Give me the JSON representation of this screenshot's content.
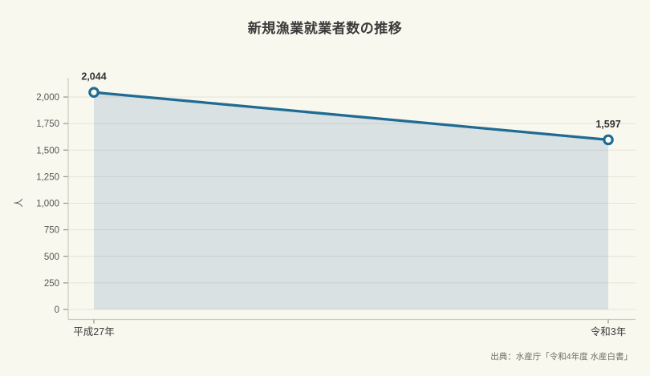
{
  "title": "新規漁業就業者数の推移",
  "source": "出典：水産庁「令和4年度 水産白書」",
  "chart_data": {
    "type": "area",
    "title": "新規漁業就業者数の推移",
    "categories": [
      "平成27年",
      "令和3年"
    ],
    "values": [
      2044,
      1597
    ],
    "point_labels": [
      "2,044",
      "1,597"
    ],
    "xlabel": "",
    "ylabel": "人",
    "yticks": [
      0,
      250,
      500,
      750,
      1000,
      1250,
      1500,
      1750,
      2000
    ],
    "ytick_labels": [
      "0",
      "250",
      "500",
      "750",
      "1,000",
      "1,250",
      "1,500",
      "1,750",
      "2,000"
    ],
    "ylim": [
      -90,
      2180
    ],
    "grid": "horizontal",
    "legend": "none",
    "marker": "circle-open",
    "source_note": "出典：水産庁「令和4年度 水産白書」"
  },
  "colors": {
    "background": "#f9f8ef",
    "line": "#1f6b93",
    "area_fill": "rgba(70,120,165,0.18)",
    "marker_fill": "#fbfaf3",
    "grid": "#e5e3d8",
    "axis": "#cccbc2",
    "tick": "#919191",
    "title_text": "#3b3b3b",
    "point_label_text": "#333333",
    "xtick_text": "#3a3a3a",
    "ytick_text": "#555555",
    "source_text": "#6f6f66"
  }
}
